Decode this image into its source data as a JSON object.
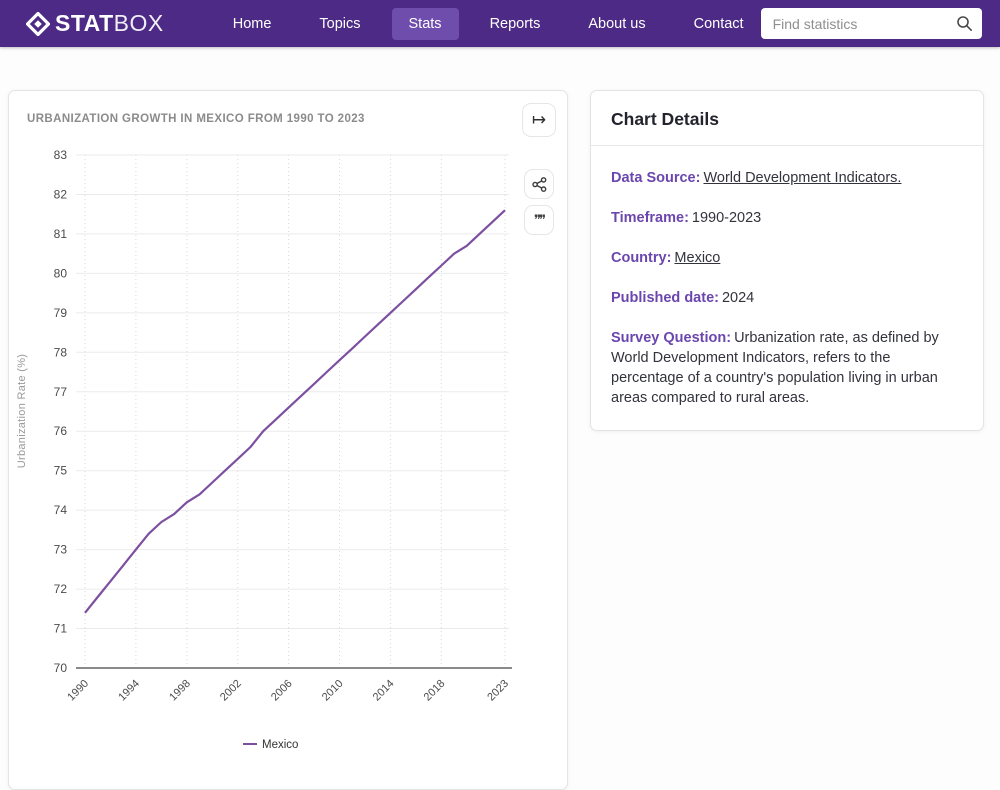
{
  "navbar": {
    "logo": {
      "stat": "STAT",
      "box": "BOX"
    },
    "items": [
      {
        "label": "Home",
        "active": false
      },
      {
        "label": "Topics",
        "active": false
      },
      {
        "label": "Stats",
        "active": true
      },
      {
        "label": "Reports",
        "active": false
      },
      {
        "label": "About us",
        "active": false
      },
      {
        "label": "Contact",
        "active": false
      }
    ],
    "search": {
      "placeholder": "Find statistics",
      "value": ""
    }
  },
  "chart_card": {
    "title": "URBANIZATION GROWTH IN MEXICO FROM 1990 TO 2023",
    "icons": {
      "export": "↦",
      "share": "share-nodes",
      "cite": "❞❞",
      "search": "magnifier",
      "logo": "diamond"
    }
  },
  "chart_data": {
    "type": "line",
    "title": "Urbanization Growth in Mexico from 1990 to 2023",
    "xlabel": "",
    "ylabel": "Urbanization Rate (%)",
    "ylim": [
      70,
      83
    ],
    "yticks": [
      70,
      71,
      72,
      73,
      74,
      75,
      76,
      77,
      78,
      79,
      80,
      81,
      82,
      83
    ],
    "xticks": [
      1990,
      1994,
      1998,
      2002,
      2006,
      2010,
      2014,
      2018,
      2023
    ],
    "grid": true,
    "legend_position": "bottom",
    "x": [
      1990,
      1991,
      1992,
      1993,
      1994,
      1995,
      1996,
      1997,
      1998,
      1999,
      2000,
      2001,
      2002,
      2003,
      2004,
      2005,
      2006,
      2007,
      2008,
      2009,
      2010,
      2011,
      2012,
      2013,
      2014,
      2015,
      2016,
      2017,
      2018,
      2019,
      2020,
      2021,
      2022,
      2023
    ],
    "series": [
      {
        "name": "Mexico",
        "color": "#7c4f9f",
        "values": [
          71.4,
          71.8,
          72.2,
          72.6,
          73.0,
          73.4,
          73.7,
          73.9,
          74.2,
          74.4,
          74.7,
          75.0,
          75.3,
          75.6,
          76.0,
          76.3,
          76.6,
          76.9,
          77.2,
          77.5,
          77.8,
          78.1,
          78.4,
          78.7,
          79.0,
          79.3,
          79.6,
          79.9,
          80.2,
          80.5,
          80.7,
          81.0,
          81.3,
          81.6
        ]
      }
    ]
  },
  "details_card": {
    "title": "Chart Details",
    "rows": [
      {
        "label": "Data Source:",
        "value": "World Development Indicators.",
        "link": true
      },
      {
        "label": "Timeframe:",
        "value": "1990-2023",
        "link": false
      },
      {
        "label": "Country:",
        "value": "Mexico",
        "link": true
      },
      {
        "label": "Published date:",
        "value": "2024",
        "link": false
      },
      {
        "label": "Survey Question:",
        "value": "Urbanization rate, as defined by World Development Indicators, refers to the percentage of a country's population living in urban areas compared to rural areas.",
        "link": false
      }
    ]
  },
  "colors": {
    "navbar_bg": "#4c2a85",
    "nav_active_bg": "#6f4dad",
    "accent_purple": "#6b46ae",
    "line_purple": "#7c4f9f",
    "title_gray": "#8b8b8b"
  }
}
